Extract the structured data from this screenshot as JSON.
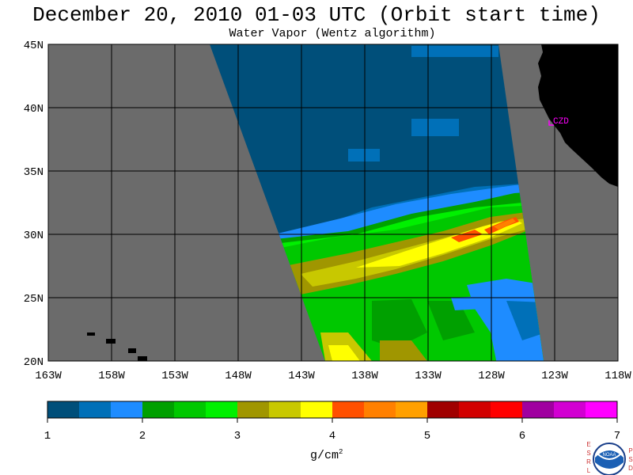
{
  "title": "December 20, 2010  01-03 UTC  (Orbit start time)",
  "subtitle": "Water Vapor (Wentz algorithm)",
  "map": {
    "lat_ticks": [
      "45N",
      "40N",
      "35N",
      "30N",
      "25N",
      "20N"
    ],
    "lon_ticks": [
      "163W",
      "158W",
      "153W",
      "148W",
      "143W",
      "138W",
      "133W",
      "128W",
      "123W",
      "118W"
    ],
    "station_label": "CZD",
    "colors": {
      "background": "#6b6b6b",
      "land": "#000000",
      "grid": "#000000",
      "station": "#ff00ff"
    }
  },
  "colorbar": {
    "labels": [
      "1",
      "2",
      "3",
      "4",
      "5",
      "6",
      "7"
    ],
    "unit_text": "g/cm",
    "unit_exp": "2",
    "colors": [
      "#004f7a",
      "#0070b8",
      "#1e8cff",
      "#00a000",
      "#00c800",
      "#00f000",
      "#a09600",
      "#c8c800",
      "#ffff00",
      "#ff5000",
      "#ff8000",
      "#ffa000",
      "#a00000",
      "#d20000",
      "#ff0000",
      "#a000a0",
      "#d200d2",
      "#ff00ff"
    ]
  },
  "logo": {
    "left_letters": [
      "E",
      "S",
      "R",
      "L"
    ],
    "right_letters": [
      "P",
      "S",
      "D"
    ],
    "text": "NOAA"
  }
}
